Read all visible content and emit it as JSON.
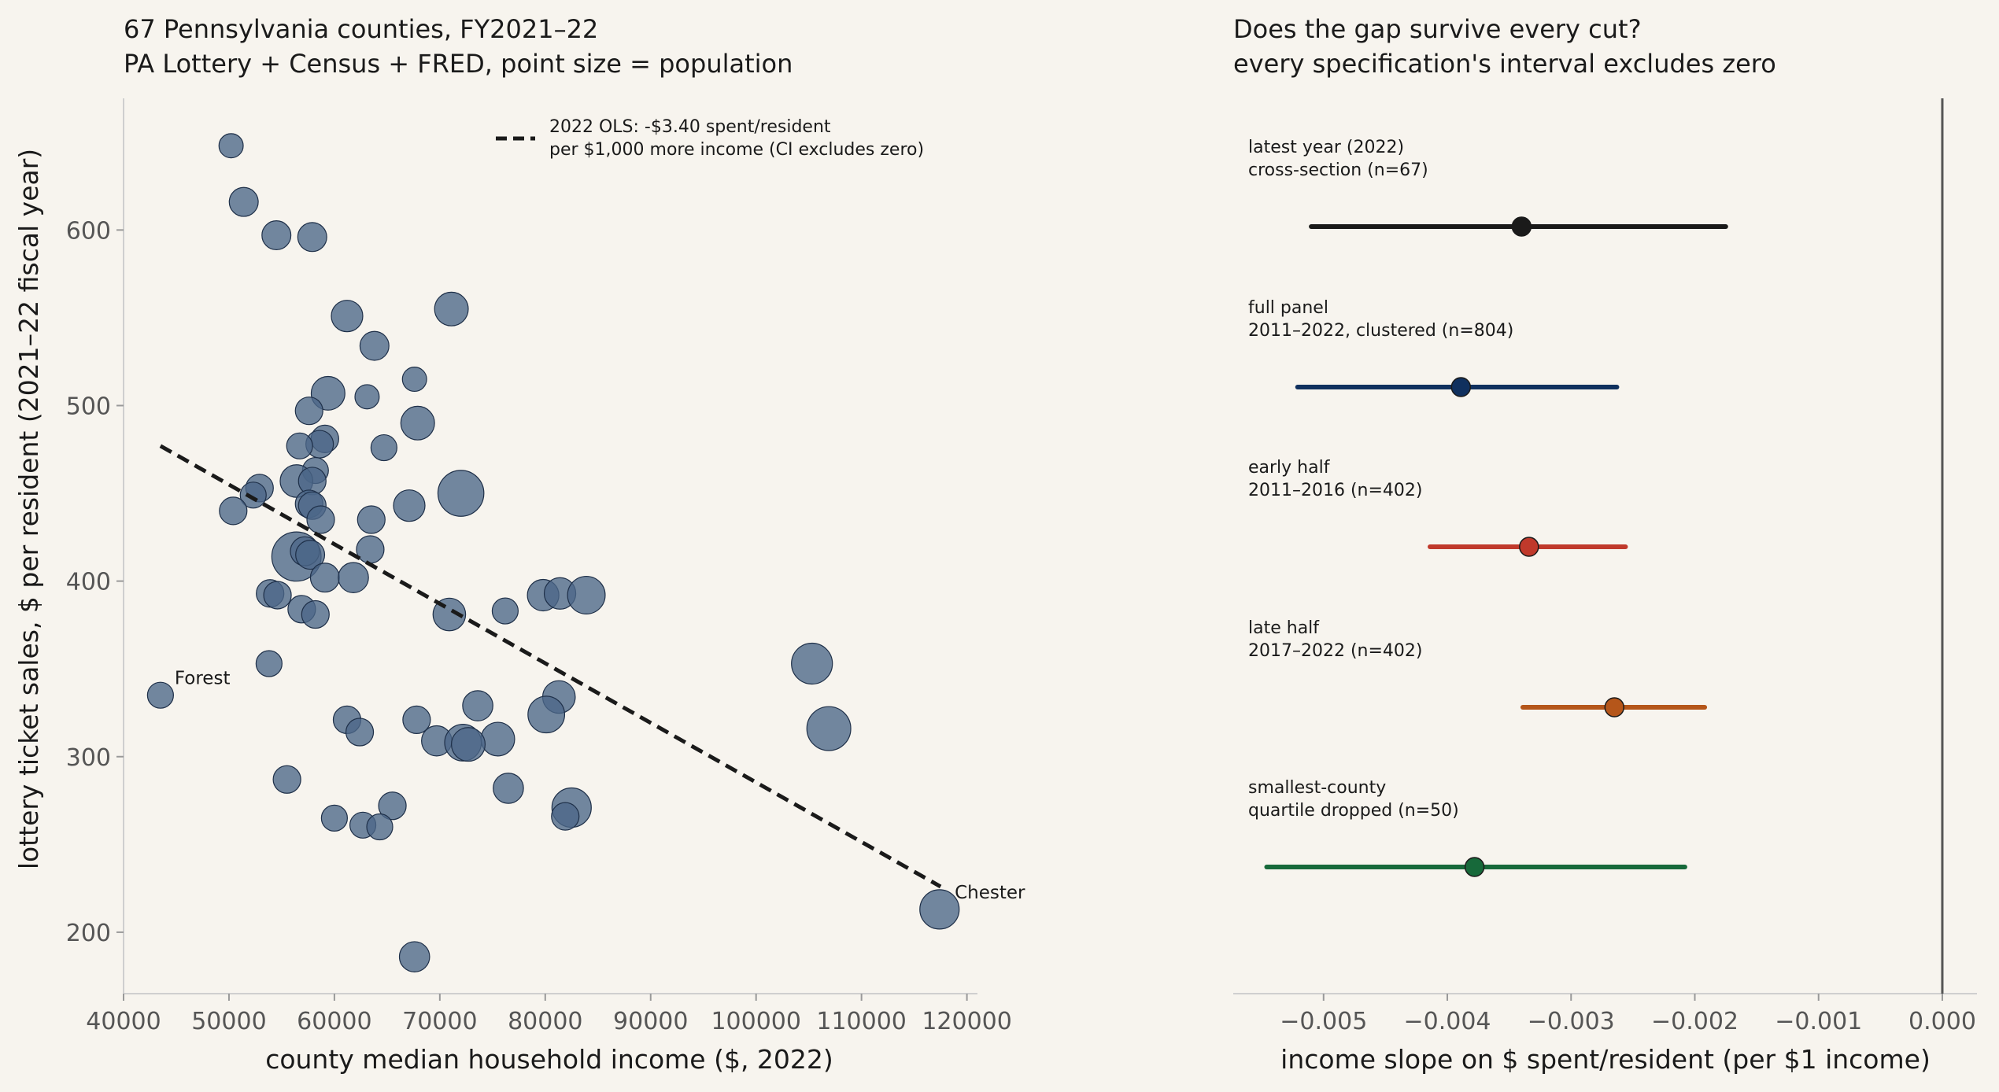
{
  "chart_data": [
    {
      "type": "scatter",
      "title": "67 Pennsylvania counties, FY2021–22",
      "subtitle": "PA Lottery + Census + FRED, point size = population",
      "xlabel": "county median household income ($, 2022)",
      "ylabel": "lottery ticket sales, $ per resident (2021–22 fiscal year)",
      "xlim": [
        40000,
        121000
      ],
      "ylim": [
        165,
        675
      ],
      "xticks": [
        40000,
        50000,
        60000,
        70000,
        80000,
        90000,
        100000,
        110000,
        120000
      ],
      "yticks": [
        200,
        300,
        400,
        500,
        600
      ],
      "xtick_labels": [
        "40000",
        "50000",
        "60000",
        "70000",
        "80000",
        "90000",
        "100000",
        "110000",
        "120000"
      ],
      "ytick_labels": [
        "200",
        "300",
        "400",
        "500",
        "600"
      ],
      "grid": false,
      "point_color": "#4c6688",
      "fit_color": "#1a1a1a",
      "fit_line": {
        "x": [
          43500,
          117500
        ],
        "y": [
          477,
          226
        ]
      },
      "legend": {
        "placement": "top-center",
        "line1": "2022 OLS: -$3.40 spent/resident",
        "line2": "per $1,000 more income (CI excludes zero)"
      },
      "annotations": [
        {
          "text": "Forest",
          "x": 43500,
          "y": 335
        },
        {
          "text": "Chester",
          "x": 117500,
          "y": 213
        }
      ],
      "points": [
        {
          "x": 50200,
          "y": 648,
          "pop": 0.15
        },
        {
          "x": 51400,
          "y": 616,
          "pop": 0.3
        },
        {
          "x": 54500,
          "y": 597,
          "pop": 0.3
        },
        {
          "x": 57900,
          "y": 596,
          "pop": 0.3
        },
        {
          "x": 61200,
          "y": 551,
          "pop": 0.4
        },
        {
          "x": 71100,
          "y": 555,
          "pop": 0.5
        },
        {
          "x": 63800,
          "y": 534,
          "pop": 0.3
        },
        {
          "x": 67600,
          "y": 515,
          "pop": 0.15
        },
        {
          "x": 59400,
          "y": 507,
          "pop": 0.5
        },
        {
          "x": 63100,
          "y": 505,
          "pop": 0.15
        },
        {
          "x": 57600,
          "y": 497,
          "pop": 0.25
        },
        {
          "x": 67900,
          "y": 490,
          "pop": 0.5
        },
        {
          "x": 59100,
          "y": 481,
          "pop": 0.25
        },
        {
          "x": 58600,
          "y": 478,
          "pop": 0.25
        },
        {
          "x": 56700,
          "y": 477,
          "pop": 0.2
        },
        {
          "x": 64700,
          "y": 476,
          "pop": 0.2
        },
        {
          "x": 58200,
          "y": 463,
          "pop": 0.2
        },
        {
          "x": 56400,
          "y": 457,
          "pop": 0.45
        },
        {
          "x": 57900,
          "y": 457,
          "pop": 0.25
        },
        {
          "x": 52900,
          "y": 453,
          "pop": 0.25
        },
        {
          "x": 52300,
          "y": 449,
          "pop": 0.2
        },
        {
          "x": 72000,
          "y": 450,
          "pop": 1.25
        },
        {
          "x": 57600,
          "y": 444,
          "pop": 0.25
        },
        {
          "x": 57900,
          "y": 443,
          "pop": 0.25
        },
        {
          "x": 67100,
          "y": 443,
          "pop": 0.4
        },
        {
          "x": 50400,
          "y": 440,
          "pop": 0.25
        },
        {
          "x": 58700,
          "y": 435,
          "pop": 0.25
        },
        {
          "x": 63500,
          "y": 435,
          "pop": 0.25
        },
        {
          "x": 63400,
          "y": 418,
          "pop": 0.25
        },
        {
          "x": 56400,
          "y": 414,
          "pop": 1.5
        },
        {
          "x": 57200,
          "y": 417,
          "pop": 0.3
        },
        {
          "x": 57700,
          "y": 415,
          "pop": 0.3
        },
        {
          "x": 59100,
          "y": 402,
          "pop": 0.3
        },
        {
          "x": 61800,
          "y": 402,
          "pop": 0.35
        },
        {
          "x": 53900,
          "y": 393,
          "pop": 0.25
        },
        {
          "x": 54600,
          "y": 392,
          "pop": 0.25
        },
        {
          "x": 79800,
          "y": 392,
          "pop": 0.4
        },
        {
          "x": 81400,
          "y": 393,
          "pop": 0.4
        },
        {
          "x": 83900,
          "y": 392,
          "pop": 0.7
        },
        {
          "x": 56900,
          "y": 384,
          "pop": 0.25
        },
        {
          "x": 58200,
          "y": 381,
          "pop": 0.25
        },
        {
          "x": 70900,
          "y": 381,
          "pop": 0.45
        },
        {
          "x": 76200,
          "y": 383,
          "pop": 0.2
        },
        {
          "x": 53800,
          "y": 353,
          "pop": 0.2
        },
        {
          "x": 105300,
          "y": 353,
          "pop": 0.9
        },
        {
          "x": 81300,
          "y": 334,
          "pop": 0.45
        },
        {
          "x": 80100,
          "y": 324,
          "pop": 0.65
        },
        {
          "x": 73600,
          "y": 329,
          "pop": 0.35
        },
        {
          "x": 61200,
          "y": 321,
          "pop": 0.25
        },
        {
          "x": 67800,
          "y": 321,
          "pop": 0.25
        },
        {
          "x": 62400,
          "y": 314,
          "pop": 0.25
        },
        {
          "x": 106900,
          "y": 316,
          "pop": 1.1
        },
        {
          "x": 75500,
          "y": 310,
          "pop": 0.5
        },
        {
          "x": 69700,
          "y": 309,
          "pop": 0.35
        },
        {
          "x": 72200,
          "y": 308,
          "pop": 0.65
        },
        {
          "x": 72700,
          "y": 307,
          "pop": 0.5
        },
        {
          "x": 55500,
          "y": 287,
          "pop": 0.25
        },
        {
          "x": 76500,
          "y": 282,
          "pop": 0.35
        },
        {
          "x": 82500,
          "y": 271,
          "pop": 0.8
        },
        {
          "x": 65500,
          "y": 272,
          "pop": 0.25
        },
        {
          "x": 81900,
          "y": 266,
          "pop": 0.25
        },
        {
          "x": 60000,
          "y": 265,
          "pop": 0.2
        },
        {
          "x": 62700,
          "y": 261,
          "pop": 0.2
        },
        {
          "x": 64300,
          "y": 260,
          "pop": 0.2
        },
        {
          "x": 43500,
          "y": 335,
          "pop": 0.2
        },
        {
          "x": 117400,
          "y": 213,
          "pop": 0.8
        },
        {
          "x": 67600,
          "y": 186,
          "pop": 0.35
        }
      ]
    },
    {
      "type": "forest",
      "title": "Does the gap survive every cut?",
      "subtitle": "every specification's interval excludes zero",
      "xlabel": "income slope on $ spent/resident (per $1 income)",
      "xlim": [
        -0.00573,
        0.00028
      ],
      "xticks": [
        -0.005,
        -0.004,
        -0.003,
        -0.002,
        -0.001,
        0.0
      ],
      "xtick_labels": [
        "−0.005",
        "−0.004",
        "−0.003",
        "−0.002",
        "−0.001",
        "0.000"
      ],
      "zero_line_color": "#555555",
      "specs": [
        {
          "line1": "latest year (2022)",
          "line2": "cross-section  (n=67)",
          "estimate": -0.0034,
          "lo": -0.0051,
          "hi": -0.00175,
          "color": "#1a1a1a"
        },
        {
          "line1": "full panel",
          "line2": "2011–2022, clustered  (n=804)",
          "estimate": -0.00389,
          "lo": -0.00521,
          "hi": -0.00263,
          "color": "#10305e"
        },
        {
          "line1": "early half",
          "line2": "2011–2016  (n=402)",
          "estimate": -0.00334,
          "lo": -0.00414,
          "hi": -0.00256,
          "color": "#c0392b"
        },
        {
          "line1": "late half",
          "line2": "2017–2022  (n=402)",
          "estimate": -0.00265,
          "lo": -0.00339,
          "hi": -0.00192,
          "color": "#b5561a"
        },
        {
          "line1": "smallest-county",
          "line2": "quartile dropped  (n=50)",
          "estimate": -0.00378,
          "lo": -0.00546,
          "hi": -0.00208,
          "color": "#17693a"
        }
      ]
    }
  ]
}
